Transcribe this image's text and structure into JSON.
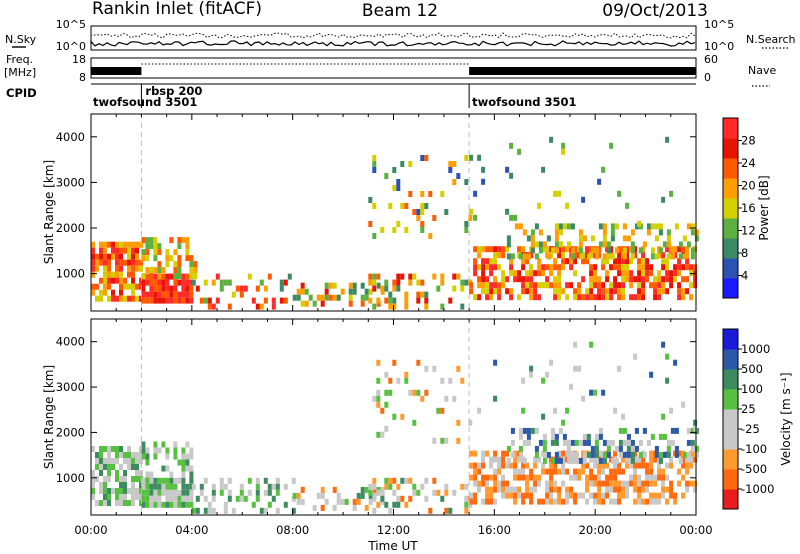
{
  "header": {
    "station": "Rankin Inlet (fitACF)",
    "beam": "Beam 12",
    "date": "09/Oct/2013"
  },
  "strip_labels": {
    "nsky": "N.Sky",
    "nsky_ticks": [
      "10^5",
      "10^0"
    ],
    "nsearch": "N.Search",
    "nsearch_ticks": [
      "10^5",
      "10^0"
    ],
    "freq_line1": "Freq.",
    "freq_line2": "[MHz]",
    "freq_ticks": [
      "18",
      "8"
    ],
    "nave": "Nave",
    "nave_ticks": [
      "60",
      "0"
    ],
    "cpid": "CPID"
  },
  "cpid_segments": [
    {
      "label": "twofsound 3501",
      "start_hour": 0
    },
    {
      "label": "rbsp 200",
      "start_hour": 2.0
    },
    {
      "label": "twofsound 3501",
      "start_hour": 15.0
    }
  ],
  "colors": {
    "power_scale": [
      "#1a1aff",
      "#2c52b4",
      "#3c8a64",
      "#5cb040",
      "#d4d000",
      "#ff9e00",
      "#ff5a00",
      "#e61400",
      "#ff2a2a"
    ],
    "velocity_scale": [
      "#e81e1e",
      "#ff6a10",
      "#ff9a30",
      "#c8c8c8",
      "#c8c8c8",
      "#58c040",
      "#3c8c60",
      "#2c5aa8",
      "#1a1ad8"
    ]
  },
  "chart_data": [
    {
      "type": "heatmap",
      "panel": "power",
      "xlabel": "",
      "ylabel": "Slant Range [km]",
      "x_ticks": [
        "00:00",
        "04:00",
        "08:00",
        "12:00",
        "16:00",
        "20:00",
        "00:00"
      ],
      "xlim_hours": [
        0,
        24
      ],
      "ylim": [
        180,
        4500
      ],
      "y_ticks": [
        1000,
        2000,
        3000,
        4000
      ],
      "colorbar_label": "Power [dB]",
      "colorbar_ticks": [
        "28",
        "24",
        "20",
        "16",
        "12",
        "8",
        "4"
      ],
      "cpid_boundaries_hours": [
        2.0,
        15.0
      ]
    },
    {
      "type": "heatmap",
      "panel": "velocity",
      "xlabel": "Time UT",
      "ylabel": "Slant Range [km]",
      "x_ticks": [
        "00:00",
        "04:00",
        "08:00",
        "12:00",
        "16:00",
        "20:00",
        "00:00"
      ],
      "xlim_hours": [
        0,
        24
      ],
      "ylim": [
        180,
        4500
      ],
      "y_ticks": [
        1000,
        2000,
        3000,
        4000
      ],
      "colorbar_label": "Velocity [m s⁻¹]",
      "colorbar_ticks": [
        "1000",
        "500",
        "100",
        "25",
        "-25",
        "-100",
        "-500",
        "-1000"
      ],
      "cpid_boundaries_hours": [
        2.0,
        15.0
      ]
    }
  ]
}
